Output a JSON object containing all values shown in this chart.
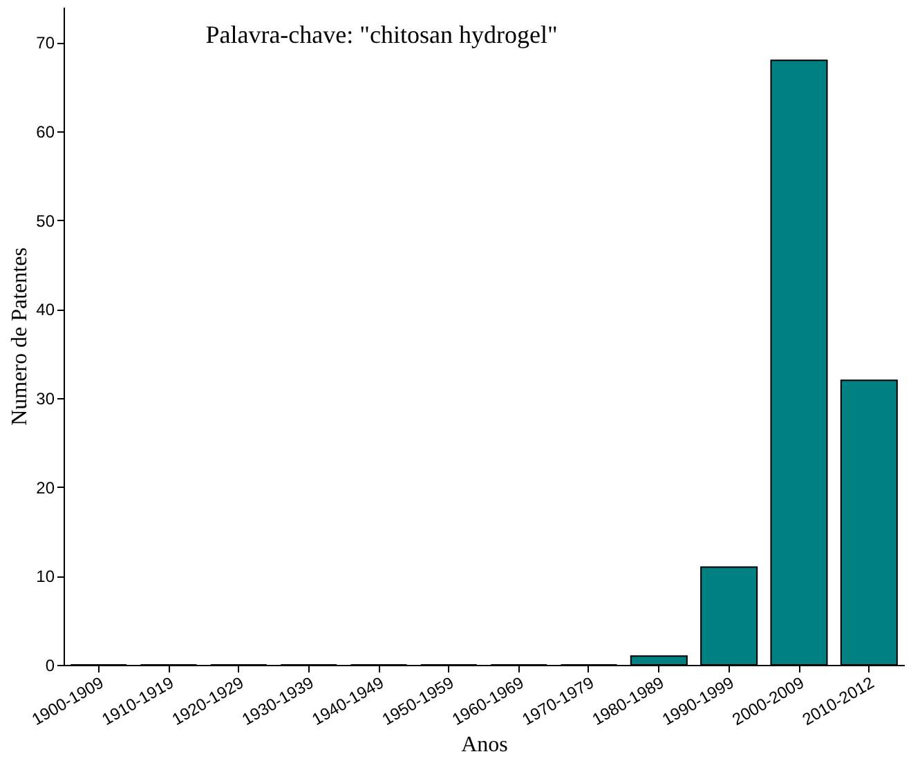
{
  "chart_data": {
    "type": "bar",
    "xlabel": "Anos",
    "ylabel": "Numero de Patentes",
    "annotations": [
      "Palavra-chave: \"chitosan hydrogel\""
    ],
    "categories": [
      "1900-1909",
      "1910-1919",
      "1920-1929",
      "1930-1939",
      "1940-1949",
      "1950-1959",
      "1960-1969",
      "1970-1979",
      "1980-1989",
      "1990-1999",
      "2000-2009",
      "2010-2012"
    ],
    "values": [
      0,
      0,
      0,
      0,
      0,
      0,
      0,
      0,
      1,
      11,
      68,
      32
    ],
    "color": "#008080",
    "ylim": [
      0,
      74
    ],
    "yticks": [
      0,
      10,
      20,
      30,
      40,
      50,
      60,
      70
    ],
    "grid": false
  }
}
